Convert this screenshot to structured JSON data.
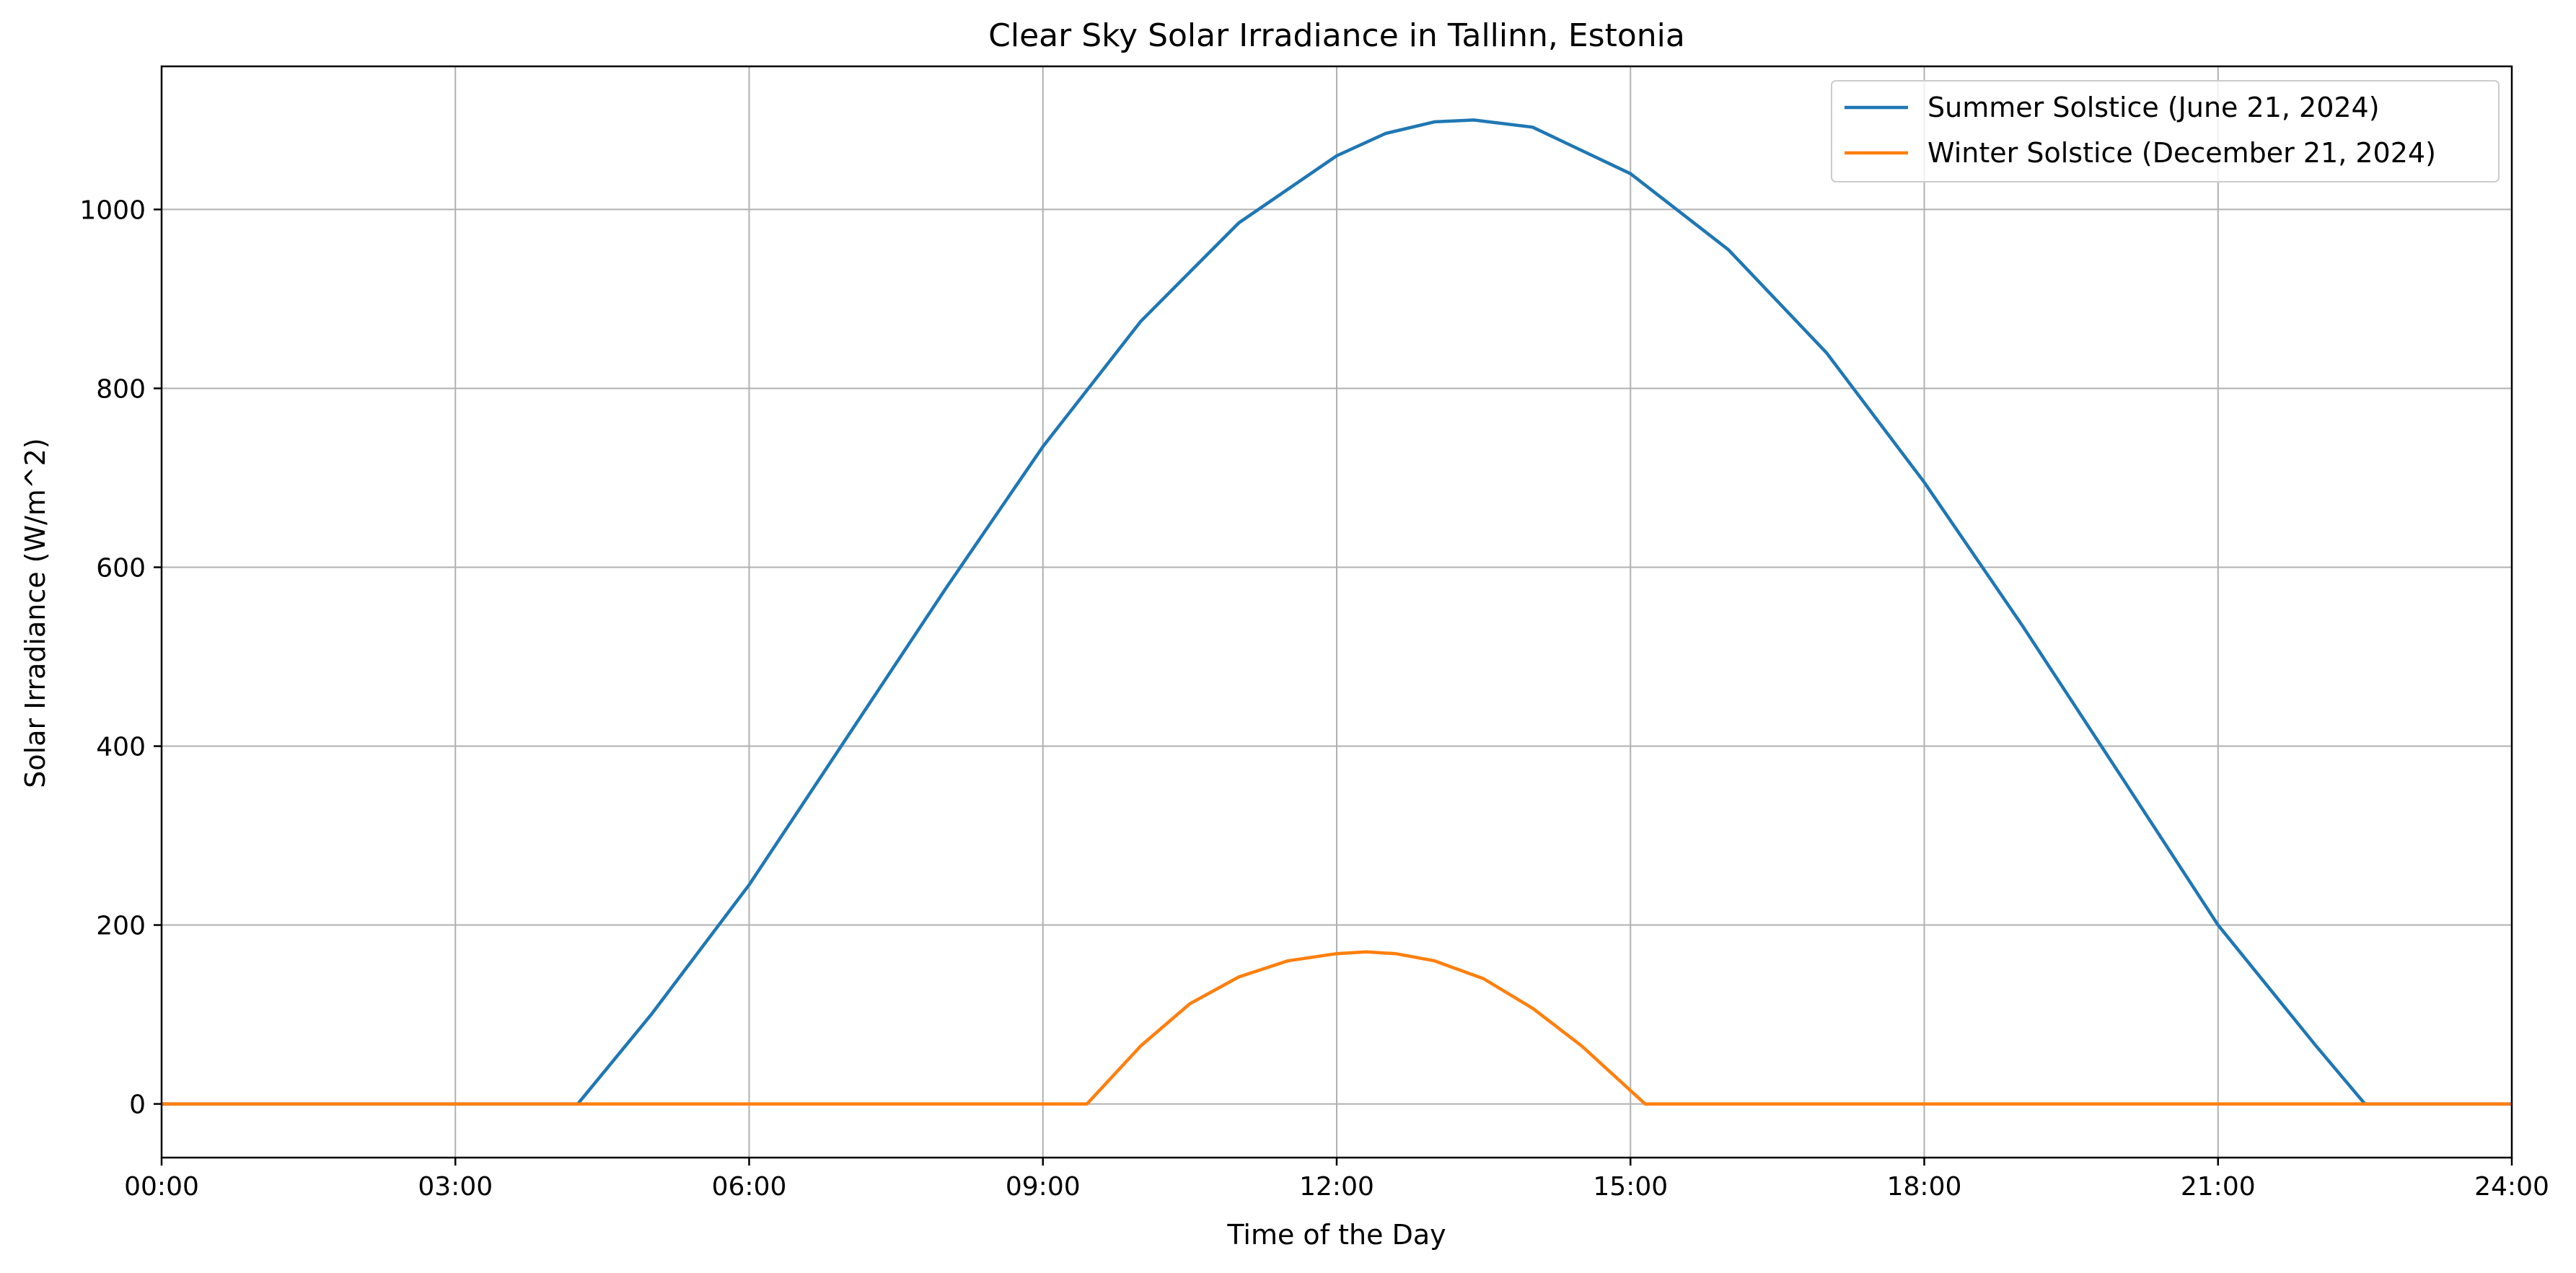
{
  "chart_data": {
    "type": "line",
    "title": "Clear Sky Solar Irradiance in Tallinn, Estonia",
    "xlabel": "Time of the Day",
    "ylabel": "Solar Irradiance (W/m^2)",
    "xlim": [
      0,
      24
    ],
    "ylim": [
      -60,
      1160
    ],
    "x_ticks": [
      {
        "value": 0,
        "label": "00:00"
      },
      {
        "value": 3,
        "label": "03:00"
      },
      {
        "value": 6,
        "label": "06:00"
      },
      {
        "value": 9,
        "label": "09:00"
      },
      {
        "value": 12,
        "label": "12:00"
      },
      {
        "value": 15,
        "label": "15:00"
      },
      {
        "value": 18,
        "label": "18:00"
      },
      {
        "value": 21,
        "label": "21:00"
      },
      {
        "value": 24,
        "label": "24:00"
      }
    ],
    "y_ticks": [
      {
        "value": 0,
        "label": "0"
      },
      {
        "value": 200,
        "label": "200"
      },
      {
        "value": 400,
        "label": "400"
      },
      {
        "value": 600,
        "label": "600"
      },
      {
        "value": 800,
        "label": "800"
      },
      {
        "value": 1000,
        "label": "1000"
      }
    ],
    "grid": true,
    "legend_position": "top-right",
    "series": [
      {
        "name": "Summer Solstice (June 21, 2024)",
        "color": "#1f77b4",
        "x": [
          0,
          4.25,
          5,
          6,
          7,
          8,
          9,
          10,
          11,
          12,
          12.5,
          13,
          13.4,
          14,
          15,
          16,
          17,
          18,
          19,
          20,
          21,
          22,
          22.5,
          24
        ],
        "y": [
          0,
          0,
          100,
          245,
          410,
          575,
          735,
          875,
          985,
          1060,
          1085,
          1098,
          1100,
          1092,
          1040,
          955,
          840,
          695,
          535,
          368,
          200,
          65,
          0,
          0
        ]
      },
      {
        "name": "Winter Solstice (December 21, 2024)",
        "color": "#ff7f0e",
        "x": [
          0,
          9.45,
          10,
          10.5,
          11,
          11.5,
          12,
          12.3,
          12.6,
          13,
          13.5,
          14,
          14.5,
          15.15,
          24
        ],
        "y": [
          0,
          0,
          65,
          112,
          142,
          160,
          168,
          170,
          168,
          160,
          140,
          107,
          65,
          0,
          0
        ]
      }
    ]
  }
}
